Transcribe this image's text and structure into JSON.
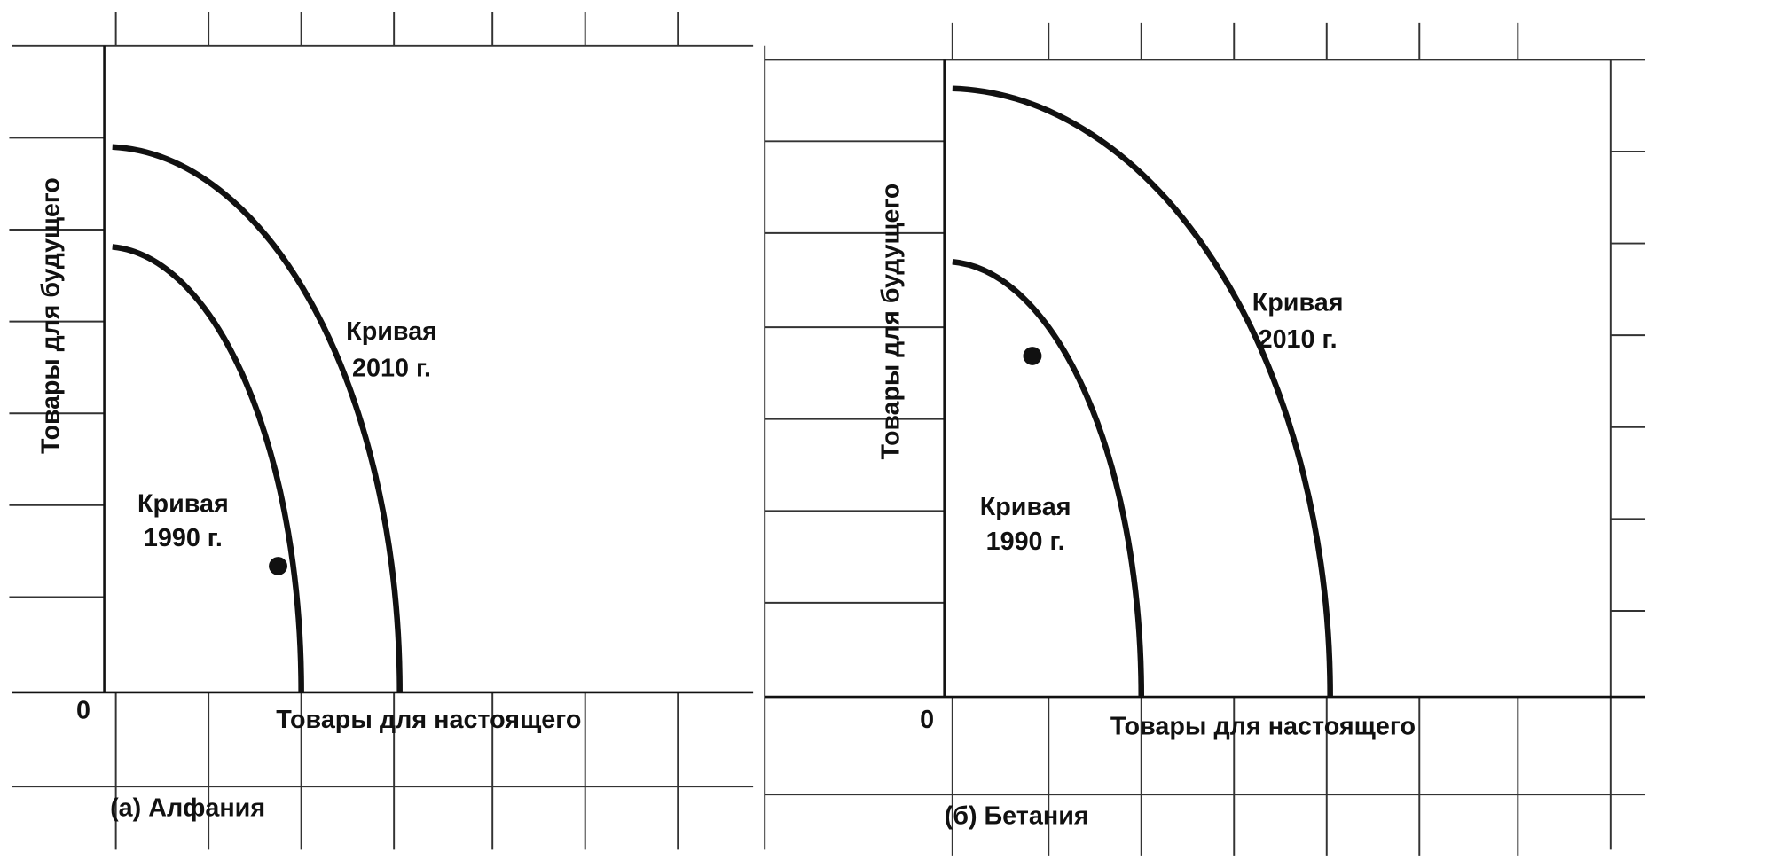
{
  "panels": [
    {
      "caption": "(а)  Алфания",
      "y_label": "Товары для будущего",
      "x_label": "Товары для настоящего",
      "origin": "0",
      "curves": [
        {
          "label_lines": [
            "Кривая",
            "1990 г."
          ]
        },
        {
          "label_lines": [
            "Кривая",
            "2010 г."
          ]
        }
      ]
    },
    {
      "caption": "(б)  Бетания",
      "y_label": "Товары для будущего",
      "x_label": "Товары для настоящего",
      "origin": "0",
      "curves": [
        {
          "label_lines": [
            "Кривая",
            "1990 г."
          ]
        },
        {
          "label_lines": [
            "Кривая",
            "2010 г."
          ]
        }
      ]
    }
  ]
}
